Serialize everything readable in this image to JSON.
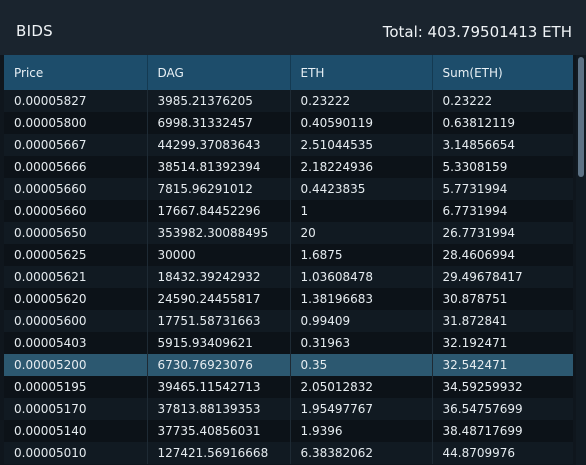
{
  "panel": {
    "title": "BIDS",
    "total": "Total: 403.79501413 ETH"
  },
  "table": {
    "columns": [
      "Price",
      "DAG",
      "ETH",
      "Sum(ETH)"
    ],
    "rows": [
      [
        "0.00005827",
        "3985.21376205",
        "0.23222",
        "0.23222"
      ],
      [
        "0.00005800",
        "6998.31332457",
        "0.40590119",
        "0.63812119"
      ],
      [
        "0.00005667",
        "44299.37083643",
        "2.51044535",
        "3.14856654"
      ],
      [
        "0.00005666",
        "38514.81392394",
        "2.18224936",
        "5.3308159"
      ],
      [
        "0.00005660",
        "7815.96291012",
        "0.4423835",
        "5.7731994"
      ],
      [
        "0.00005660",
        "17667.84452296",
        "1",
        "6.7731994"
      ],
      [
        "0.00005650",
        "353982.30088495",
        "20",
        "26.7731994"
      ],
      [
        "0.00005625",
        "30000",
        "1.6875",
        "28.4606994"
      ],
      [
        "0.00005621",
        "18432.39242932",
        "1.03608478",
        "29.49678417"
      ],
      [
        "0.00005620",
        "24590.24455817",
        "1.38196683",
        "30.878751"
      ],
      [
        "0.00005600",
        "17751.58731663",
        "0.99409",
        "31.872841"
      ],
      [
        "0.00005403",
        "5915.93409621",
        "0.31963",
        "32.192471"
      ],
      [
        "0.00005200",
        "6730.76923076",
        "0.35",
        "32.542471"
      ],
      [
        "0.00005195",
        "39465.11542713",
        "2.05012832",
        "34.59259932"
      ],
      [
        "0.00005170",
        "37813.88139353",
        "1.95497767",
        "36.54757699"
      ],
      [
        "0.00005140",
        "37735.40856031",
        "1.9396",
        "38.48717699"
      ],
      [
        "0.00005010",
        "127421.56916668",
        "6.38382062",
        "44.8709976"
      ]
    ],
    "highlighted_row_index": 12
  },
  "colors": {
    "header_bg": "#1a242e",
    "column_header_bg": "#1d4d6b",
    "highlight_row_bg": "#2c5870",
    "row_bg": "#111a22"
  },
  "scrollbar": {
    "position_fraction": 0.0
  }
}
